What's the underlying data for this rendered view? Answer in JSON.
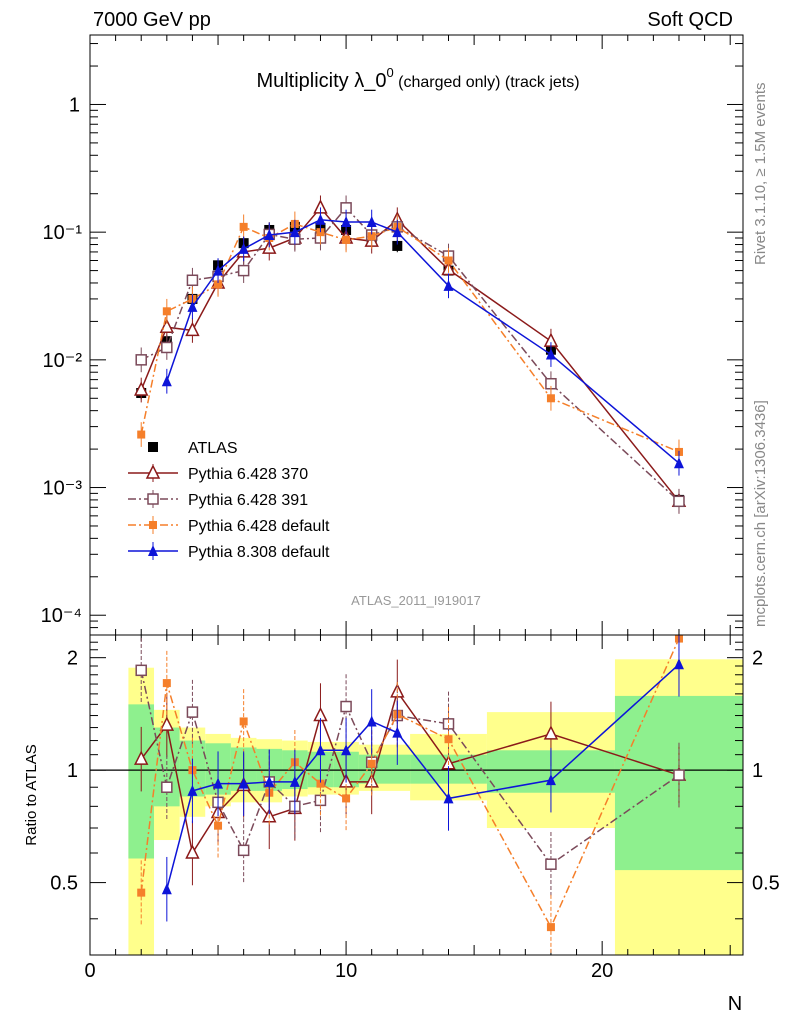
{
  "header": {
    "left": "7000 GeV pp",
    "right": "Soft QCD"
  },
  "side": {
    "rivet": "Rivet 3.1.10, ≥ 1.5M events",
    "mcplots": "mcplots.cern.ch [arXiv:1306.3436]"
  },
  "chart_data": {
    "type": "scatter",
    "title": "Multiplicity λ_0⁰ (charged only) (track jets)",
    "title_main": "Multiplicity λ_0",
    "title_sup": "0",
    "title_tail": " (charged only) (track jets)",
    "analysis_label": "ATLAS_2011_I919017",
    "xlabel": "N",
    "ratio_ylabel": "Ratio to ATLAS",
    "xlim": [
      0,
      25.5
    ],
    "ylim": [
      7e-05,
      3.5
    ],
    "yscale": "log",
    "ratio_ylim": [
      0.32,
      2.3
    ],
    "x_ticks": [
      "0",
      "10",
      "20"
    ],
    "y_ticks": [
      "10⁻⁴",
      "10⁻³",
      "10⁻²",
      "10⁻¹",
      "1"
    ],
    "ratio_ticks": [
      "0.5",
      "1",
      "2"
    ],
    "legend_position": "left-middle",
    "series": [
      {
        "name": "ATLAS",
        "color": "#000000",
        "marker": "square-filled",
        "x": [
          2,
          3,
          4,
          5,
          6,
          7,
          8,
          9,
          10,
          11,
          12,
          14,
          18,
          23
        ],
        "y": [
          0.0055,
          0.014,
          0.03,
          0.055,
          0.082,
          0.104,
          0.11,
          0.108,
          0.104,
          0.09,
          0.078,
          0.05,
          0.012,
          0.0008
        ],
        "ratio_band_inner": [
          [
            0.58,
            1.5
          ],
          [
            0.8,
            1.3
          ],
          [
            0.85,
            1.2
          ],
          [
            0.86,
            1.18
          ],
          [
            0.88,
            1.15
          ],
          [
            0.88,
            1.14
          ],
          [
            0.89,
            1.13
          ],
          [
            0.9,
            1.12
          ],
          [
            0.9,
            1.12
          ],
          [
            0.92,
            1.1
          ],
          [
            0.92,
            1.1
          ],
          [
            0.92,
            1.1
          ],
          [
            0.87,
            1.13
          ],
          [
            0.54,
            1.58
          ]
        ],
        "ratio_band_outer": [
          [
            0.3,
            1.88
          ],
          [
            0.65,
            1.45
          ],
          [
            0.75,
            1.3
          ],
          [
            0.8,
            1.25
          ],
          [
            0.82,
            1.22
          ],
          [
            0.82,
            1.21
          ],
          [
            0.85,
            1.2
          ],
          [
            0.86,
            1.19
          ],
          [
            0.86,
            1.19
          ],
          [
            0.88,
            1.17
          ],
          [
            0.88,
            1.17
          ],
          [
            0.83,
            1.25
          ],
          [
            0.7,
            1.43
          ],
          [
            0.3,
            1.98
          ]
        ]
      },
      {
        "name": "Pythia 6.428 370",
        "color": "#8b1a1a",
        "marker": "triangle-open",
        "dash": "",
        "x": [
          2,
          3,
          4,
          5,
          6,
          7,
          8,
          9,
          10,
          11,
          12,
          14,
          18,
          23
        ],
        "y": [
          0.0058,
          0.018,
          0.017,
          0.04,
          0.07,
          0.075,
          0.09,
          0.155,
          0.09,
          0.085,
          0.125,
          0.051,
          0.014,
          0.00078
        ],
        "ratio": [
          1.07,
          1.32,
          0.6,
          0.77,
          0.91,
          0.75,
          0.79,
          1.4,
          0.93,
          0.93,
          1.62,
          1.04,
          1.25,
          0.97
        ]
      },
      {
        "name": "Pythia 6.428 391",
        "color": "#7b4a5a",
        "marker": "square-open",
        "dash": "8,3,2,3",
        "x": [
          2,
          3,
          4,
          5,
          6,
          7,
          8,
          9,
          10,
          11,
          12,
          14,
          18,
          23
        ],
        "y": [
          0.01,
          0.0125,
          0.042,
          0.045,
          0.05,
          0.096,
          0.088,
          0.09,
          0.155,
          0.095,
          0.11,
          0.065,
          0.0065,
          0.00078
        ],
        "ratio": [
          1.85,
          0.9,
          1.43,
          0.82,
          0.61,
          0.93,
          0.8,
          0.83,
          1.48,
          1.05,
          1.4,
          1.33,
          0.56,
          0.97
        ]
      },
      {
        "name": "Pythia 6.428 default",
        "color": "#f57f2a",
        "marker": "square-filled-small",
        "dash": "8,3,2,3",
        "x": [
          2,
          3,
          4,
          5,
          6,
          7,
          8,
          9,
          10,
          11,
          12,
          14,
          18,
          23
        ],
        "y": [
          0.0026,
          0.024,
          0.03,
          0.039,
          0.11,
          0.09,
          0.116,
          0.1,
          0.087,
          0.093,
          0.11,
          0.06,
          0.005,
          0.0019
        ],
        "ratio": [
          0.47,
          1.71,
          1.0,
          0.71,
          1.35,
          0.87,
          1.05,
          0.92,
          0.84,
          1.04,
          1.41,
          1.21,
          0.38,
          2.25
        ]
      },
      {
        "name": "Pythia 8.308 default",
        "color": "#0d14d8",
        "marker": "triangle-filled",
        "dash": "",
        "x": [
          2,
          3,
          4,
          5,
          6,
          7,
          8,
          9,
          10,
          11,
          12,
          14,
          18,
          23
        ],
        "y": [
          0.0,
          0.0068,
          0.026,
          0.05,
          0.074,
          0.095,
          0.1,
          0.125,
          0.12,
          0.12,
          0.1,
          0.038,
          0.011,
          0.00155
        ],
        "ratio": [
          null,
          0.48,
          0.88,
          0.92,
          0.92,
          0.93,
          0.93,
          1.13,
          1.13,
          1.35,
          1.26,
          0.84,
          0.94,
          1.92
        ]
      }
    ]
  }
}
